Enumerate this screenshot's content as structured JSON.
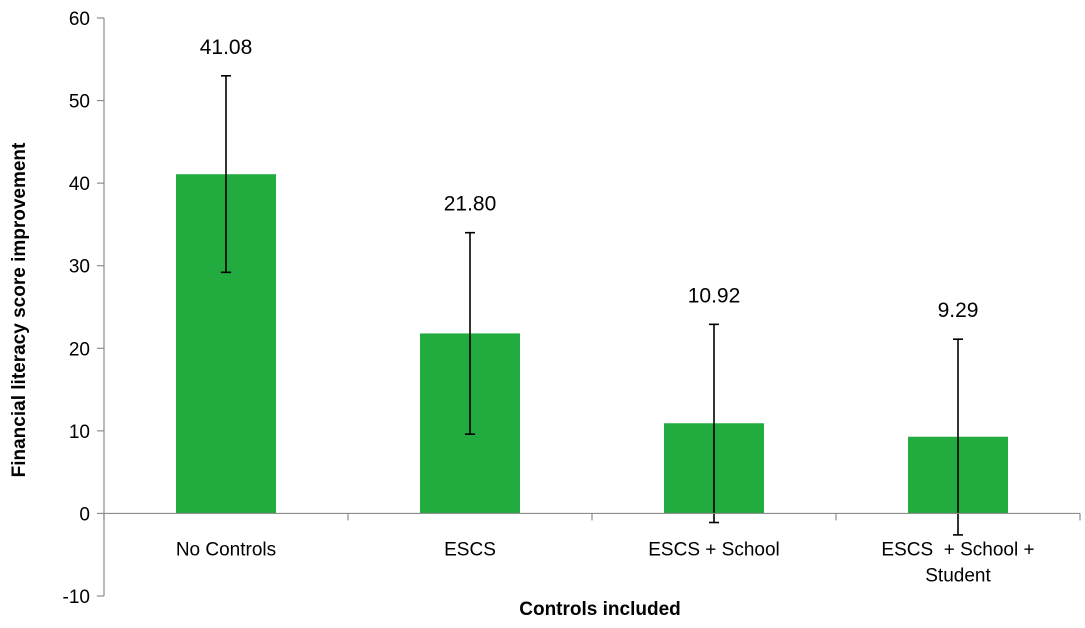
{
  "chart_data": {
    "type": "bar",
    "categories": [
      [
        "No Controls"
      ],
      [
        "ESCS"
      ],
      [
        "ESCS + School"
      ],
      [
        "ESCS  + School +",
        "Student"
      ]
    ],
    "values": [
      41.08,
      21.8,
      10.92,
      9.29
    ],
    "value_labels": [
      "41.08",
      "21.80",
      "10.92",
      "9.29"
    ],
    "error_bars": [
      {
        "low": 29.2,
        "high": 53.0
      },
      {
        "low": 9.6,
        "high": 34.0
      },
      {
        "low": -1.1,
        "high": 22.9
      },
      {
        "low": -2.6,
        "high": 21.1
      }
    ],
    "ylim": [
      -10,
      60
    ],
    "yticks": [
      -10,
      0,
      10,
      20,
      30,
      40,
      50,
      60
    ],
    "xlabel": "Controls included",
    "ylabel": "Financial literacy score improvement",
    "grid": false,
    "legend": "none",
    "colors": {
      "bar": "#22ab3f",
      "axis": "#8c8c8c",
      "error_bar": "#000000"
    }
  }
}
